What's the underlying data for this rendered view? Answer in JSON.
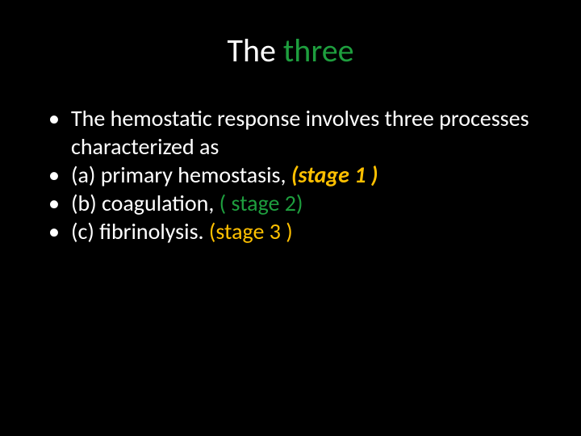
{
  "title": {
    "part1": "The ",
    "part2": "three",
    "part1_color": "#ffffff",
    "part2_color": "#1e9e3e",
    "fontsize": 40
  },
  "bullets": [
    {
      "plain": "The hemostatic response involves three processes characterized as",
      "stage": ""
    },
    {
      "plain": "(a) primary hemostasis, ",
      "stage": "(stage 1 )",
      "stage_color": "#ffc000",
      "stage_italic": true,
      "stage_bold": true
    },
    {
      "plain": "(b) coagulation, ",
      "stage": "( stage 2)",
      "stage_color": "#1e9e3e"
    },
    {
      "plain": " (c) fibrinolysis. ",
      "stage": "(stage 3 )",
      "stage_color": "#ffc000"
    }
  ],
  "colors": {
    "background": "#000000",
    "text": "#ffffff",
    "accent_green": "#1e9e3e",
    "accent_yellow": "#ffc000"
  },
  "body_fontsize": 28
}
